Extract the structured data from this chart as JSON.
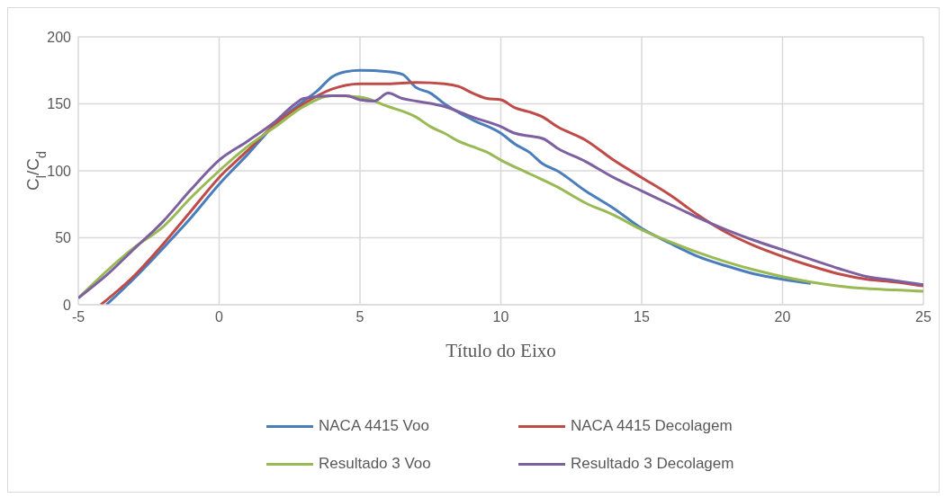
{
  "chart_data": {
    "type": "line",
    "xlabel": "Título do Eixo",
    "ylabel": "C$_{l}$/C$_{d}$",
    "xlim": [
      -5,
      25
    ],
    "xticks": [
      -5,
      0,
      5,
      10,
      15,
      20,
      25
    ],
    "ylim": [
      0,
      200
    ],
    "yticks": [
      0,
      50,
      100,
      150,
      200
    ],
    "grid": true,
    "legend": "bottom",
    "marker": "none",
    "line_style": "solid",
    "series": [
      {
        "name": "NACA 4415 Voo",
        "color": "#4a7ebb",
        "x": [
          -4,
          -3,
          -2,
          -1,
          0,
          1,
          2,
          3,
          3.5,
          4,
          4.5,
          5,
          6,
          6.5,
          7,
          7.5,
          8,
          9,
          10,
          10.5,
          11,
          11.5,
          12,
          13,
          14,
          15,
          16,
          17,
          18,
          19,
          20,
          21
        ],
        "values": [
          0,
          20,
          42,
          65,
          90,
          112,
          135,
          152,
          160,
          170,
          174,
          175,
          174,
          172,
          162,
          158,
          150,
          138,
          128,
          120,
          114,
          105,
          100,
          85,
          72,
          57,
          46,
          36,
          29,
          23,
          19,
          16
        ]
      },
      {
        "name": "NACA 4415 Decolagem",
        "color": "#be4b48",
        "x": [
          -4.2,
          -3,
          -2,
          -1,
          0,
          1,
          2,
          3,
          4,
          5,
          6,
          7,
          8,
          8.5,
          9,
          9.5,
          10,
          10.5,
          11,
          11.5,
          12,
          13,
          14,
          15,
          16,
          17,
          18,
          19,
          20,
          21,
          22,
          23,
          24,
          25
        ],
        "values": [
          0,
          22,
          45,
          70,
          95,
          115,
          135,
          150,
          161,
          165,
          165,
          166,
          165,
          163,
          158,
          154,
          153,
          147,
          144,
          140,
          133,
          123,
          108,
          95,
          82,
          67,
          54,
          44,
          36,
          29,
          23,
          19,
          17,
          14
        ]
      },
      {
        "name": "Resultado 3 Voo",
        "color": "#98b954",
        "x": [
          -5,
          -4,
          -3,
          -2,
          -1,
          0,
          1,
          2,
          3,
          4,
          5,
          6,
          7,
          7.5,
          8,
          8.5,
          9,
          9.5,
          10,
          11,
          12,
          13,
          14,
          15,
          16,
          17,
          18,
          19,
          20,
          21,
          22,
          23,
          24,
          25
        ],
        "values": [
          5,
          25,
          43,
          58,
          80,
          100,
          118,
          133,
          148,
          156,
          155,
          148,
          140,
          133,
          128,
          122,
          118,
          114,
          108,
          98,
          88,
          76,
          67,
          56,
          47,
          39,
          32,
          26,
          21,
          17,
          14,
          12,
          11,
          10
        ]
      },
      {
        "name": "Resultado 3 Decolagem",
        "color": "#7d60a0",
        "x": [
          -5,
          -4,
          -3,
          -2,
          -1,
          0,
          1,
          2,
          2.7,
          3,
          4,
          4.5,
          5,
          5.5,
          6,
          6.5,
          7,
          8,
          9,
          10,
          10.5,
          11,
          11.5,
          12,
          13,
          14,
          15,
          16,
          17,
          18,
          19,
          20,
          21,
          22,
          23,
          24,
          25
        ],
        "values": [
          5,
          22,
          42,
          62,
          86,
          108,
          122,
          137,
          150,
          154,
          156,
          156,
          153,
          152,
          158,
          154,
          152,
          148,
          140,
          133,
          128,
          126,
          124,
          117,
          107,
          95,
          85,
          75,
          65,
          56,
          48,
          41,
          34,
          27,
          21,
          18,
          15
        ]
      }
    ]
  }
}
